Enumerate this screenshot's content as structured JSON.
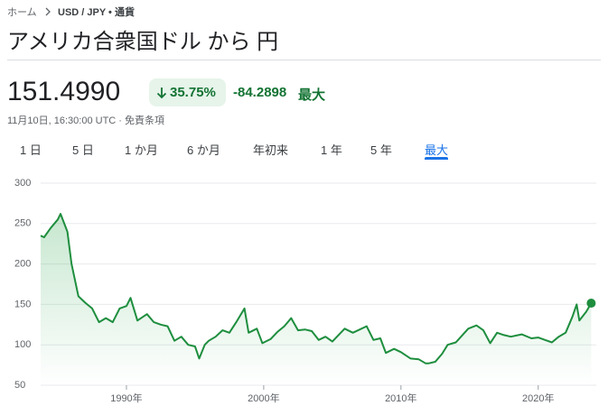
{
  "breadcrumb": [
    "ホーム",
    "USD / JPY • 通貨"
  ],
  "title": "アメリカ合衆国ドル から 円",
  "price": "151.4990",
  "change_percent": "35.75%",
  "change": "-84.2898",
  "period_label": "最大",
  "timestamp": "11月10日, 16:30:00 UTC · 免責条項",
  "tabs": [
    "1 日",
    "5 日",
    "1 か月",
    "6 か月",
    "年初来",
    "1 年",
    "5 年",
    "最大"
  ],
  "chart_data": {
    "type": "line",
    "color": "#1e8e3e",
    "x": [
      1983.75,
      1984.0,
      1984.5,
      1985.0,
      1985.2,
      1985.7,
      1986.0,
      1986.5,
      1987.0,
      1987.5,
      1988.0,
      1988.5,
      1989.0,
      1989.5,
      1990.0,
      1990.3,
      1990.8,
      1991.5,
      1992.0,
      1992.5,
      1993.0,
      1993.5,
      1994.0,
      1994.5,
      1995.0,
      1995.3,
      1995.7,
      1996.0,
      1996.5,
      1997.0,
      1997.5,
      1998.0,
      1998.6,
      1998.9,
      1999.5,
      1999.9,
      2000.5,
      2001.0,
      2001.5,
      2002.0,
      2002.5,
      2003.0,
      2003.5,
      2004.0,
      2004.5,
      2005.0,
      2005.9,
      2006.5,
      2007.5,
      2008.0,
      2008.5,
      2008.9,
      2009.5,
      2010.0,
      2010.7,
      2011.3,
      2011.8,
      2012.0,
      2012.5,
      2013.0,
      2013.4,
      2014.0,
      2014.9,
      2015.5,
      2016.0,
      2016.5,
      2017.0,
      2017.5,
      2018.0,
      2018.8,
      2019.5,
      2020.0,
      2020.5,
      2021.0,
      2021.5,
      2022.0,
      2022.5,
      2022.8,
      2023.0,
      2023.5,
      2023.86
    ],
    "values": [
      235,
      233,
      245,
      255,
      262,
      240,
      200,
      160,
      152,
      145,
      128,
      133,
      128,
      145,
      148,
      158,
      130,
      138,
      128,
      125,
      123,
      105,
      110,
      100,
      98,
      83,
      100,
      105,
      110,
      118,
      115,
      128,
      145,
      115,
      120,
      102,
      107,
      116,
      123,
      133,
      118,
      119,
      117,
      106,
      110,
      104,
      120,
      115,
      123,
      106,
      108,
      90,
      95,
      91,
      83,
      82,
      77,
      77,
      79,
      89,
      100,
      103,
      120,
      124,
      118,
      102,
      115,
      112,
      110,
      113,
      108,
      109,
      106,
      103,
      110,
      115,
      135,
      150,
      130,
      141,
      151.499
    ],
    "xlim": [
      1983.75,
      2023.9
    ],
    "xticks": [
      {
        "value": 1990,
        "label": "1990年"
      },
      {
        "value": 2000,
        "label": "2000年"
      },
      {
        "value": 2010,
        "label": "2010年"
      },
      {
        "value": 2020,
        "label": "2020年"
      }
    ],
    "ylim": [
      50,
      300
    ],
    "yticks": [
      50,
      100,
      150,
      200,
      250,
      300
    ],
    "grid": true
  }
}
